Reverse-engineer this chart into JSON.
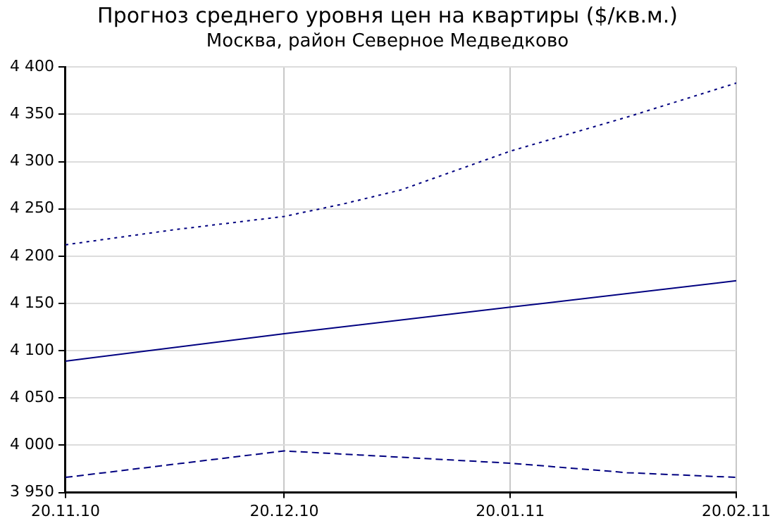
{
  "chart_data": {
    "type": "line",
    "title": "Прогноз среднего уровня цен на квартиры ($/кв.м.)",
    "subtitle": "Москва, район Северное Медведково",
    "xlim": [
      "2010-11-20",
      "2011-02-20"
    ],
    "xticks": [
      {
        "value": "2010-11-20",
        "label": "20.11.10"
      },
      {
        "value": "2010-12-20",
        "label": "20.12.10"
      },
      {
        "value": "2011-01-20",
        "label": "20.01.11"
      },
      {
        "value": "2011-02-20",
        "label": "20.02.11"
      }
    ],
    "ylim": [
      3950,
      4400
    ],
    "yticks": [
      {
        "value": 3950,
        "label": "3 950"
      },
      {
        "value": 4000,
        "label": "4 000"
      },
      {
        "value": 4050,
        "label": "4 050"
      },
      {
        "value": 4100,
        "label": "4 100"
      },
      {
        "value": 4150,
        "label": "4 150"
      },
      {
        "value": 4200,
        "label": "4 200"
      },
      {
        "value": 4250,
        "label": "4 250"
      },
      {
        "value": 4300,
        "label": "4 300"
      },
      {
        "value": 4350,
        "label": "4 350"
      },
      {
        "value": 4400,
        "label": "4 400"
      }
    ],
    "grid": true,
    "legend": false,
    "marker": "none",
    "series": [
      {
        "color": "#000080",
        "line_style": "dotted",
        "x": [
          "2010-11-20",
          "2010-12-05",
          "2010-12-20",
          "2010-12-28",
          "2011-01-05",
          "2011-01-20",
          "2011-02-05",
          "2011-02-20"
        ],
        "values": [
          4212,
          4228,
          4242,
          4255,
          4270,
          4311,
          4347,
          4383
        ]
      },
      {
        "color": "#000080",
        "line_style": "solid",
        "x": [
          "2010-11-20",
          "2010-12-20",
          "2011-01-20",
          "2011-02-20"
        ],
        "values": [
          4089,
          4118,
          4146,
          4174
        ]
      },
      {
        "color": "#000080",
        "line_style": "dashed",
        "x": [
          "2010-11-20",
          "2010-12-05",
          "2010-12-20",
          "2011-01-01",
          "2011-01-20",
          "2011-02-05",
          "2011-02-20"
        ],
        "values": [
          3966,
          3980,
          3994,
          3989,
          3981,
          3971,
          3966
        ]
      }
    ]
  }
}
